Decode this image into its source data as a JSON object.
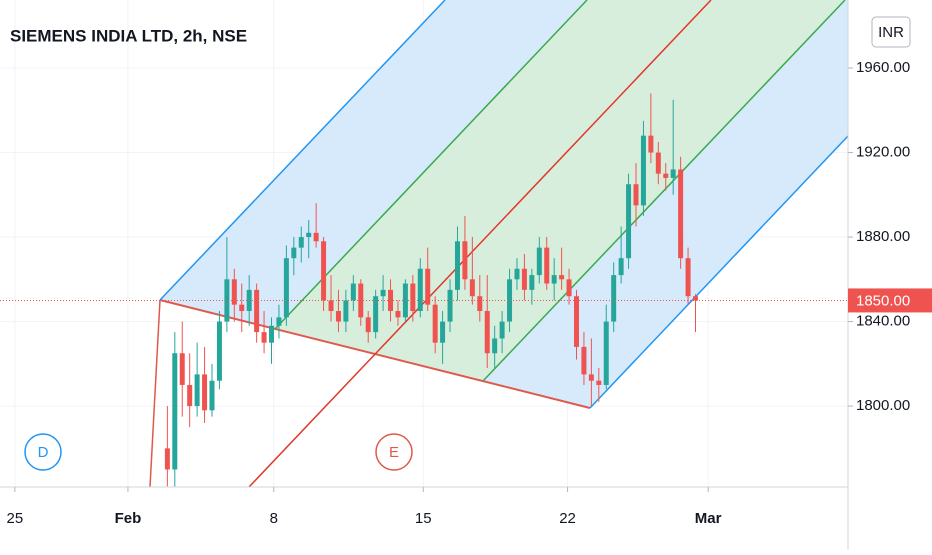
{
  "chart_data": {
    "type": "candlestick",
    "title": "SIEMENS INDIA LTD, 2h, NSE",
    "currency": "INR",
    "annotations": [
      "D",
      "E"
    ],
    "up_color": "#26a69a",
    "down_color": "#ef5350",
    "grid": true,
    "last_price": {
      "value": 1850,
      "label": "1850.00"
    },
    "xlim": [
      -1.5,
      112.5
    ],
    "xticks": [
      {
        "value": 0.5,
        "label": "25"
      },
      {
        "value": 15.7,
        "label": "Feb"
      },
      {
        "value": 35.3,
        "label": "8"
      },
      {
        "value": 55.4,
        "label": "15"
      },
      {
        "value": 74.8,
        "label": "22"
      },
      {
        "value": 93.7,
        "label": "Mar"
      }
    ],
    "ylim": [
      1761.7,
      1992.2
    ],
    "yticks": [
      {
        "value": 1800,
        "label": "1800.00"
      },
      {
        "value": 1840,
        "label": "1840.00"
      },
      {
        "value": 1880,
        "label": "1880.00"
      },
      {
        "value": 1920,
        "label": "1920.00"
      },
      {
        "value": 1960,
        "label": "1960.00"
      }
    ],
    "x": [
      21,
      22,
      23,
      24,
      25,
      26,
      27,
      28,
      29,
      30,
      31,
      32,
      33,
      34,
      35,
      36,
      37,
      38,
      39,
      40,
      41,
      42,
      43,
      44,
      45,
      46,
      47,
      48,
      49,
      50,
      51,
      52,
      53,
      54,
      55,
      56,
      57,
      58,
      59,
      60,
      61,
      62,
      63,
      64,
      65,
      66,
      67,
      68,
      69,
      70,
      71,
      72,
      73,
      74,
      75,
      76,
      77,
      78,
      79,
      80,
      81,
      82,
      83,
      84,
      85,
      86,
      87,
      88,
      89,
      90,
      91,
      92
    ],
    "open": [
      1780,
      1770,
      1825,
      1810,
      1800,
      1815,
      1798,
      1812,
      1840,
      1860,
      1848,
      1845,
      1855,
      1835,
      1830,
      1838,
      1842,
      1870,
      1875,
      1880,
      1882,
      1878,
      1850,
      1845,
      1840,
      1850,
      1858,
      1842,
      1835,
      1852,
      1855,
      1845,
      1842,
      1858,
      1845,
      1865,
      1848,
      1830,
      1840,
      1855,
      1878,
      1860,
      1852,
      1845,
      1825,
      1832,
      1840,
      1860,
      1865,
      1855,
      1862,
      1875,
      1858,
      1862,
      1860,
      1852,
      1828,
      1815,
      1812,
      1810,
      1840,
      1862,
      1870,
      1905,
      1895,
      1928,
      1920,
      1910,
      1908,
      1912,
      1870,
      1852
    ],
    "high": [
      1800,
      1835,
      1840,
      1825,
      1830,
      1828,
      1820,
      1845,
      1880,
      1865,
      1858,
      1862,
      1858,
      1845,
      1842,
      1848,
      1876,
      1880,
      1885,
      1888,
      1896,
      1880,
      1862,
      1855,
      1855,
      1862,
      1860,
      1845,
      1855,
      1862,
      1860,
      1850,
      1860,
      1862,
      1870,
      1875,
      1852,
      1845,
      1860,
      1885,
      1890,
      1880,
      1862,
      1862,
      1838,
      1845,
      1865,
      1870,
      1872,
      1865,
      1880,
      1880,
      1870,
      1875,
      1865,
      1855,
      1835,
      1832,
      1818,
      1848,
      1868,
      1885,
      1910,
      1915,
      1935,
      1948,
      1925,
      1915,
      1945,
      1918,
      1875,
      1853
    ],
    "low": [
      1762,
      1762,
      1795,
      1790,
      1795,
      1792,
      1795,
      1808,
      1835,
      1840,
      1835,
      1838,
      1830,
      1825,
      1820,
      1832,
      1838,
      1862,
      1868,
      1870,
      1875,
      1845,
      1840,
      1835,
      1835,
      1845,
      1838,
      1830,
      1832,
      1845,
      1840,
      1838,
      1840,
      1840,
      1842,
      1845,
      1825,
      1820,
      1835,
      1850,
      1855,
      1848,
      1840,
      1818,
      1818,
      1825,
      1835,
      1855,
      1850,
      1848,
      1858,
      1855,
      1850,
      1855,
      1848,
      1822,
      1810,
      1800,
      1802,
      1808,
      1835,
      1858,
      1865,
      1885,
      1890,
      1915,
      1905,
      1902,
      1900,
      1865,
      1848,
      1835
    ],
    "close": [
      1770,
      1825,
      1810,
      1800,
      1815,
      1798,
      1812,
      1840,
      1860,
      1848,
      1845,
      1855,
      1835,
      1830,
      1838,
      1842,
      1870,
      1875,
      1880,
      1882,
      1878,
      1850,
      1845,
      1840,
      1850,
      1858,
      1842,
      1835,
      1852,
      1855,
      1845,
      1842,
      1858,
      1845,
      1865,
      1848,
      1830,
      1840,
      1855,
      1878,
      1860,
      1852,
      1845,
      1825,
      1832,
      1840,
      1860,
      1865,
      1855,
      1862,
      1875,
      1858,
      1862,
      1860,
      1852,
      1828,
      1815,
      1812,
      1810,
      1840,
      1862,
      1870,
      1905,
      1895,
      1928,
      1920,
      1910,
      1908,
      1912,
      1870,
      1852,
      1850
    ]
  }
}
